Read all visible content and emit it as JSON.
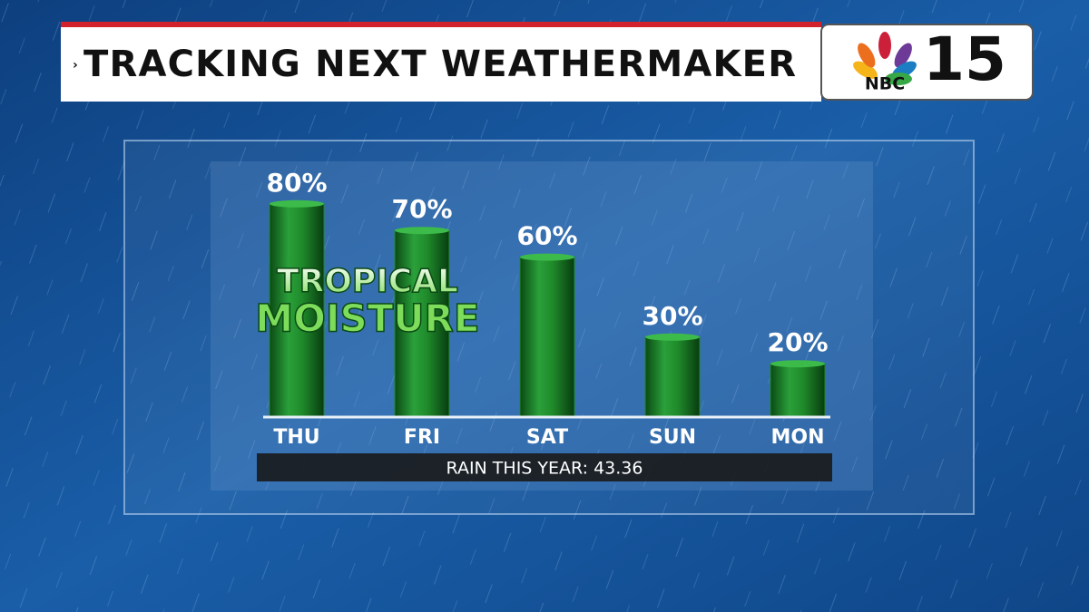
{
  "title": "TRACKING NEXT WEATHERMAKER",
  "logo": {
    "network": "NBC",
    "channel": "15"
  },
  "chart_data": {
    "type": "bar",
    "annotation": [
      "TROPICAL",
      "MOISTURE"
    ],
    "categories": [
      "THU",
      "FRI",
      "SAT",
      "SUN",
      "MON"
    ],
    "values": [
      80,
      70,
      60,
      30,
      20
    ],
    "value_labels": [
      "80%",
      "70%",
      "60%",
      "30%",
      "20%"
    ],
    "color": "#1f8a2a",
    "footer": "RAIN THIS YEAR: 43.36"
  }
}
